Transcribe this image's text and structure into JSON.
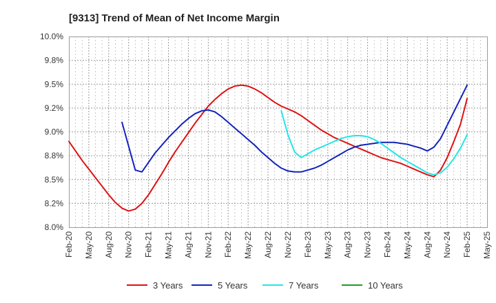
{
  "chart_data": {
    "type": "line",
    "title": "[9313]  Trend of Mean of Net Income Margin",
    "xlabel": "",
    "ylabel": "",
    "y_ticks": [
      "8.0%",
      "8.2%",
      "8.5%",
      "8.8%",
      "9.0%",
      "9.2%",
      "9.5%",
      "9.8%",
      "10.0%"
    ],
    "ylim": [
      8.0,
      10.0
    ],
    "x_ticks": [
      "Feb-20",
      "May-20",
      "Aug-20",
      "Nov-20",
      "Feb-21",
      "May-21",
      "Aug-21",
      "Nov-21",
      "Feb-22",
      "May-22",
      "Aug-22",
      "Nov-22",
      "Feb-23",
      "May-23",
      "Aug-23",
      "Nov-23",
      "Feb-24",
      "May-24",
      "Aug-24",
      "Nov-24",
      "Feb-25",
      "May-25"
    ],
    "xlim": [
      "Feb-20",
      "May-25"
    ],
    "grid": true,
    "legend_position": "bottom",
    "series": [
      {
        "name": "3 Years",
        "color": "#dd1111",
        "x": [
          "Feb-20",
          "Mar-20",
          "Apr-20",
          "May-20",
          "Jun-20",
          "Jul-20",
          "Aug-20",
          "Sep-20",
          "Oct-20",
          "Nov-20",
          "Dec-20",
          "Jan-21",
          "Feb-21",
          "Mar-21",
          "Apr-21",
          "May-21",
          "Jun-21",
          "Jul-21",
          "Aug-21",
          "Sep-21",
          "Oct-21",
          "Nov-21",
          "Dec-21",
          "Jan-22",
          "Feb-22",
          "Mar-22",
          "Apr-22",
          "May-22",
          "Jun-22",
          "Jul-22",
          "Aug-22",
          "Sep-22",
          "Oct-22",
          "Nov-22",
          "Dec-22",
          "Jan-23",
          "Feb-23",
          "Mar-23",
          "Apr-23",
          "May-23",
          "Jun-23",
          "Jul-23",
          "Aug-23",
          "Sep-23",
          "Oct-23",
          "Nov-23",
          "Dec-23",
          "Jan-24",
          "Feb-24",
          "Mar-24",
          "Apr-24",
          "May-24",
          "Jun-24",
          "Jul-24",
          "Aug-24",
          "Sep-24",
          "Oct-24",
          "Nov-24",
          "Dec-24",
          "Jan-25",
          "Feb-25"
        ],
        "values": [
          8.9,
          8.8,
          8.7,
          8.61,
          8.52,
          8.43,
          8.34,
          8.26,
          8.2,
          8.17,
          8.19,
          8.25,
          8.34,
          8.45,
          8.56,
          8.68,
          8.79,
          8.89,
          8.99,
          9.09,
          9.18,
          9.27,
          9.34,
          9.4,
          9.45,
          9.48,
          9.49,
          9.48,
          9.45,
          9.41,
          9.36,
          9.31,
          9.27,
          9.24,
          9.21,
          9.17,
          9.12,
          9.07,
          9.02,
          8.98,
          8.94,
          8.91,
          8.88,
          8.85,
          8.82,
          8.79,
          8.76,
          8.73,
          8.71,
          8.69,
          8.67,
          8.64,
          8.61,
          8.58,
          8.55,
          8.53,
          8.6,
          8.73,
          8.9,
          9.08,
          9.35
        ]
      },
      {
        "name": "5 Years",
        "color": "#1122bb",
        "x": [
          "Oct-20",
          "Nov-20",
          "Dec-20",
          "Jan-21",
          "Feb-21",
          "Mar-21",
          "Apr-21",
          "May-21",
          "Jun-21",
          "Jul-21",
          "Aug-21",
          "Sep-21",
          "Oct-21",
          "Nov-21",
          "Dec-21",
          "Jan-22",
          "Feb-22",
          "Mar-22",
          "Apr-22",
          "May-22",
          "Jun-22",
          "Jul-22",
          "Aug-22",
          "Sep-22",
          "Oct-22",
          "Nov-22",
          "Dec-22",
          "Jan-23",
          "Feb-23",
          "Mar-23",
          "Apr-23",
          "May-23",
          "Jun-23",
          "Jul-23",
          "Aug-23",
          "Sep-23",
          "Oct-23",
          "Nov-23",
          "Dec-23",
          "Jan-24",
          "Feb-24",
          "Mar-24",
          "Apr-24",
          "May-24",
          "Jun-24",
          "Jul-24",
          "Aug-24",
          "Sep-24",
          "Oct-24",
          "Nov-24",
          "Dec-24",
          "Jan-25",
          "Feb-25"
        ],
        "values": [
          9.1,
          8.85,
          8.6,
          8.58,
          8.68,
          8.78,
          8.86,
          8.94,
          9.01,
          9.08,
          9.14,
          9.19,
          9.22,
          9.23,
          9.21,
          9.16,
          9.1,
          9.04,
          8.98,
          8.92,
          8.86,
          8.79,
          8.73,
          8.67,
          8.62,
          8.59,
          8.58,
          8.58,
          8.6,
          8.62,
          8.65,
          8.69,
          8.73,
          8.77,
          8.81,
          8.84,
          8.86,
          8.87,
          8.88,
          8.89,
          8.89,
          8.89,
          8.88,
          8.87,
          8.85,
          8.83,
          8.8,
          8.84,
          8.93,
          9.07,
          9.21,
          9.35,
          9.49
        ]
      },
      {
        "name": "7 Years",
        "color": "#22e6e6",
        "x": [
          "Oct-22",
          "Nov-22",
          "Dec-22",
          "Jan-23",
          "Feb-23",
          "Mar-23",
          "Apr-23",
          "May-23",
          "Jun-23",
          "Jul-23",
          "Aug-23",
          "Sep-23",
          "Oct-23",
          "Nov-23",
          "Dec-23",
          "Jan-24",
          "Feb-24",
          "Mar-24",
          "Apr-24",
          "May-24",
          "Jun-24",
          "Jul-24",
          "Aug-24",
          "Sep-24",
          "Oct-24",
          "Nov-24",
          "Dec-24",
          "Jan-25",
          "Feb-25"
        ],
        "values": [
          9.22,
          8.97,
          8.79,
          8.73,
          8.77,
          8.81,
          8.84,
          8.87,
          8.9,
          8.93,
          8.95,
          8.96,
          8.96,
          8.95,
          8.92,
          8.88,
          8.83,
          8.78,
          8.73,
          8.69,
          8.65,
          8.61,
          8.57,
          8.55,
          8.57,
          8.63,
          8.72,
          8.83,
          8.97
        ]
      },
      {
        "name": "10 Years",
        "color": "#229922",
        "x": [],
        "values": []
      }
    ]
  }
}
